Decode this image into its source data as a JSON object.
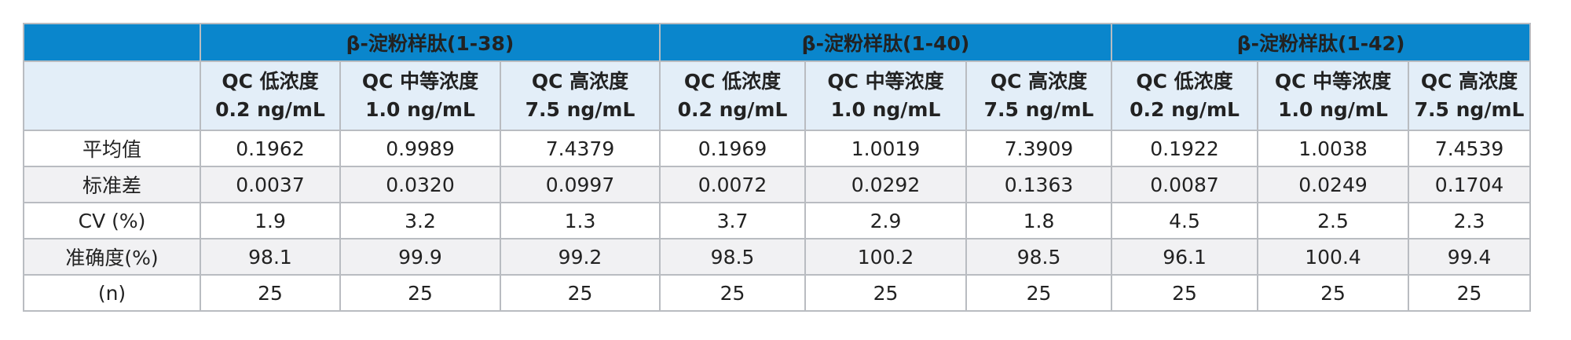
{
  "groups": [
    "β-淀粉样肽(1-38)",
    "β-淀粉样肽(1-40)",
    "β-淀粉样肽(1-42)"
  ],
  "subheaders": [
    {
      "line1": "QC 低浓度",
      "line2": "0.2 ng/mL"
    },
    {
      "line1": "QC 中等浓度",
      "line2": "1.0 ng/mL"
    },
    {
      "line1": "QC 高浓度",
      "line2": "7.5 ng/mL"
    }
  ],
  "rows": [
    {
      "label": "平均值",
      "values": [
        "0.1962",
        "0.9989",
        "7.4379",
        "0.1969",
        "1.0019",
        "7.3909",
        "0.1922",
        "1.0038",
        "7.4539"
      ]
    },
    {
      "label": "标准差",
      "values": [
        "0.0037",
        "0.0320",
        "0.0997",
        "0.0072",
        "0.0292",
        "0.1363",
        "0.0087",
        "0.0249",
        "0.1704"
      ]
    },
    {
      "label": "CV (%)",
      "values": [
        "1.9",
        "3.2",
        "1.3",
        "3.7",
        "2.9",
        "1.8",
        "4.5",
        "2.5",
        "2.3"
      ]
    },
    {
      "label": "准确度(%)",
      "values": [
        "98.1",
        "99.9",
        "99.2",
        "98.5",
        "100.2",
        "98.5",
        "96.1",
        "100.4",
        "99.4"
      ]
    },
    {
      "label": "(n)",
      "values": [
        "25",
        "25",
        "25",
        "25",
        "25",
        "25",
        "25",
        "25",
        "25"
      ]
    }
  ]
}
